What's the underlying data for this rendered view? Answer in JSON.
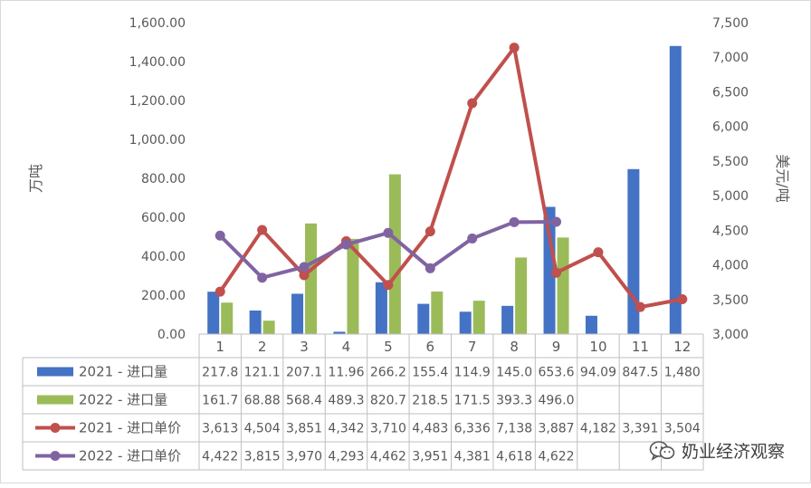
{
  "chart_data": {
    "type": "bar",
    "categories": [
      "1",
      "2",
      "3",
      "4",
      "5",
      "6",
      "7",
      "8",
      "9",
      "10",
      "11",
      "12"
    ],
    "left_axis": {
      "label": "万吨",
      "ylim": [
        0,
        1600
      ],
      "ticks": [
        "0.00",
        "200.00",
        "400.00",
        "600.00",
        "800.00",
        "1,000.00",
        "1,200.00",
        "1,400.00",
        "1,600.00"
      ]
    },
    "right_axis": {
      "label": "美元/吨",
      "ylim": [
        3000,
        7500
      ],
      "ticks": [
        "3,000",
        "3,500",
        "4,000",
        "4,500",
        "5,000",
        "5,500",
        "6,000",
        "6,500",
        "7,000",
        "7,500"
      ]
    },
    "series": [
      {
        "name": "2021 - 进口量",
        "kind": "bar",
        "axis": "left",
        "color": "#4472c4",
        "values": [
          217.8,
          121.1,
          207.1,
          11.96,
          266.2,
          155.4,
          114.9,
          145.0,
          653.6,
          94.09,
          847.5,
          1480
        ],
        "labels": [
          "217.8",
          "121.1",
          "207.1",
          "11.96",
          "266.2",
          "155.4",
          "114.9",
          "145.0",
          "653.6",
          "94.09",
          "847.5",
          "1,480"
        ]
      },
      {
        "name": "2022 - 进口量",
        "kind": "bar",
        "axis": "left",
        "color": "#9bbb59",
        "values": [
          161.7,
          68.88,
          568.4,
          489.3,
          820.7,
          218.5,
          171.5,
          393.3,
          496.0,
          null,
          null,
          null
        ],
        "labels": [
          "161.7",
          "68.88",
          "568.4",
          "489.3",
          "820.7",
          "218.5",
          "171.5",
          "393.3",
          "496.0",
          "",
          "",
          ""
        ]
      },
      {
        "name": "2021 - 进口单价",
        "kind": "line",
        "axis": "right",
        "color": "#c0504d",
        "values": [
          3613,
          4504,
          3851,
          4342,
          3710,
          4483,
          6336,
          7138,
          3887,
          4182,
          3391,
          3504
        ],
        "labels": [
          "3,613",
          "4,504",
          "3,851",
          "4,342",
          "3,710",
          "4,483",
          "6,336",
          "7,138",
          "3,887",
          "4,182",
          "3,391",
          "3,504"
        ]
      },
      {
        "name": "2022 - 进口单价",
        "kind": "line",
        "axis": "right",
        "color": "#8064a2",
        "values": [
          4422,
          3815,
          3970,
          4293,
          4462,
          3951,
          4381,
          4618,
          4622,
          null,
          null,
          null
        ],
        "labels": [
          "4,422",
          "3,815",
          "3,970",
          "4,293",
          "4,462",
          "3,951",
          "4,381",
          "4,618",
          "4,622",
          "",
          "",
          ""
        ]
      }
    ],
    "legend": "data-table-below",
    "grid": false
  },
  "watermark": {
    "text": "奶业经济观察",
    "icon": "wechat-icon"
  }
}
